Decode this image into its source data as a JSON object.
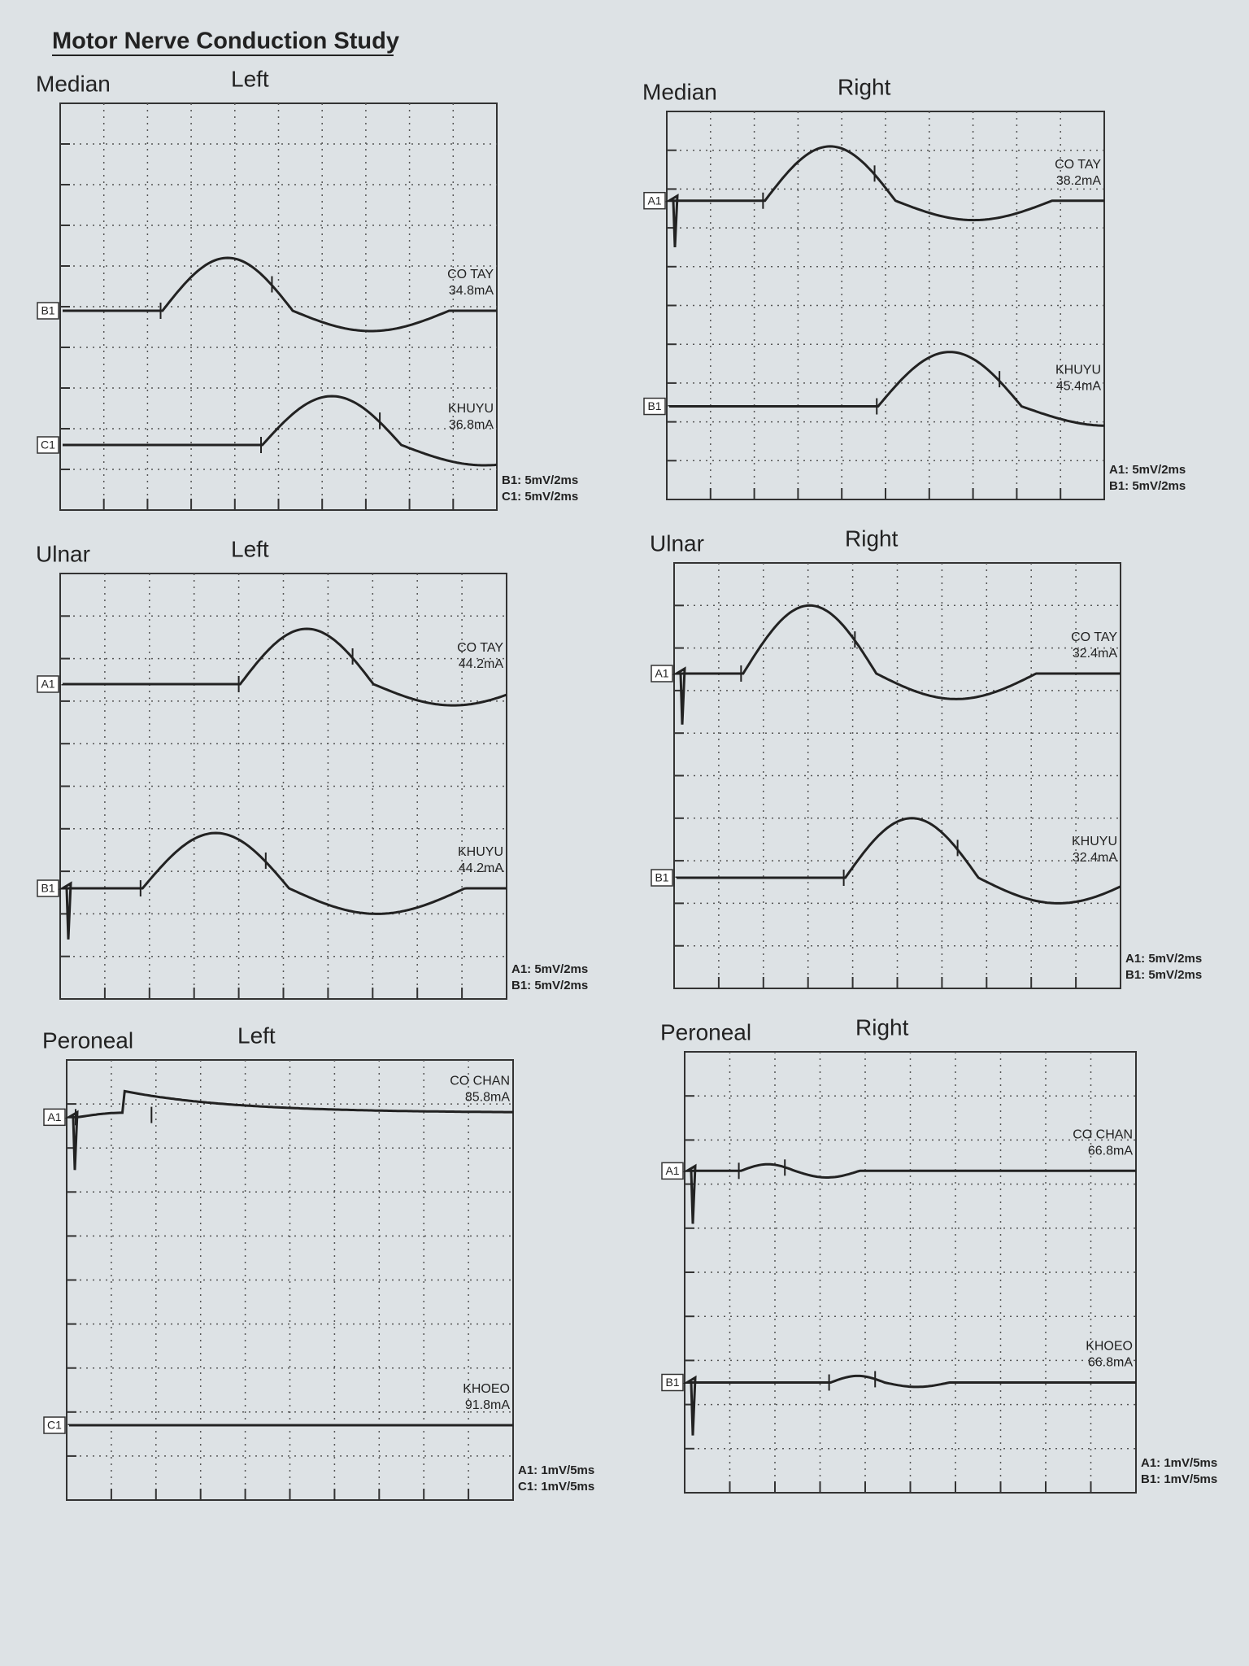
{
  "title": "Motor Nerve Conduction Study",
  "panels": [
    {
      "nerve": "Median",
      "side": "Left",
      "traces": [
        {
          "channel": "B1",
          "site": "CO TAY",
          "current": "34.8mA"
        },
        {
          "channel": "C1",
          "site": "KHUYU",
          "current": "36.8mA"
        }
      ],
      "scales": [
        "B1: 5mV/2ms",
        "C1: 5mV/2ms"
      ]
    },
    {
      "nerve": "Median",
      "side": "Right",
      "traces": [
        {
          "channel": "A1",
          "site": "CO TAY",
          "current": "38.2mA"
        },
        {
          "channel": "B1",
          "site": "KHUYU",
          "current": "45.4mA"
        }
      ],
      "scales": [
        "A1: 5mV/2ms",
        "B1: 5mV/2ms"
      ]
    },
    {
      "nerve": "Ulnar",
      "side": "Left",
      "traces": [
        {
          "channel": "A1",
          "site": "CO TAY",
          "current": "44.2mA"
        },
        {
          "channel": "B1",
          "site": "KHUYU",
          "current": "44.2mA"
        }
      ],
      "scales": [
        "A1: 5mV/2ms",
        "B1: 5mV/2ms"
      ]
    },
    {
      "nerve": "Ulnar",
      "side": "Right",
      "traces": [
        {
          "channel": "A1",
          "site": "CO TAY",
          "current": "32.4mA"
        },
        {
          "channel": "B1",
          "site": "KHUYU",
          "current": "32.4mA"
        }
      ],
      "scales": [
        "A1: 5mV/2ms",
        "B1: 5mV/2ms"
      ]
    },
    {
      "nerve": "Peroneal",
      "side": "Left",
      "traces": [
        {
          "channel": "A1",
          "site": "CO CHAN",
          "current": "85.8mA"
        },
        {
          "channel": "C1",
          "site": "KHOEO",
          "current": "91.8mA"
        }
      ],
      "scales": [
        "A1: 1mV/5ms",
        "C1: 1mV/5ms"
      ]
    },
    {
      "nerve": "Peroneal",
      "side": "Right",
      "traces": [
        {
          "channel": "A1",
          "site": "CO CHAN",
          "current": "66.8mA"
        },
        {
          "channel": "B1",
          "site": "KHOEO",
          "current": "66.8mA"
        }
      ],
      "scales": [
        "A1: 1mV/5ms",
        "B1: 1mV/5ms"
      ]
    }
  ]
}
